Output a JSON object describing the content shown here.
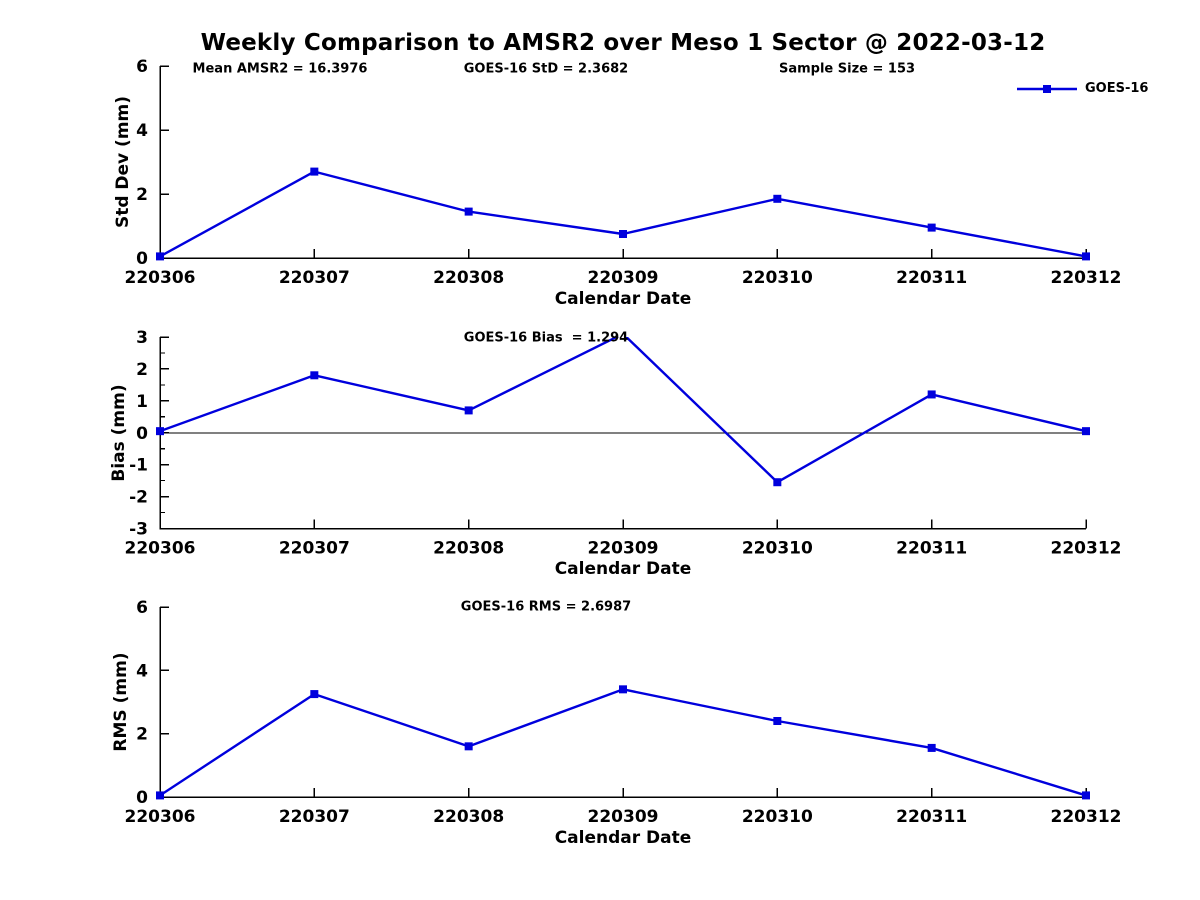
{
  "page": {
    "title": "Weekly Comparison to AMSR2 over Meso 1 Sector @ 2022-03-12"
  },
  "legend": {
    "label": "GOES-16",
    "series_color": "#0000dd"
  },
  "chart_data": [
    {
      "type": "line",
      "id": "stddev",
      "annotations": [
        {
          "text": "Mean AMSR2 = 16.3976"
        },
        {
          "text": "GOES-16 StD = 2.3682"
        },
        {
          "text": "Sample Size = 153"
        }
      ],
      "categories": [
        "220306",
        "220307",
        "220308",
        "220309",
        "220310",
        "220311",
        "220312"
      ],
      "series": [
        {
          "name": "GOES-16",
          "values": [
            0.05,
            2.7,
            1.45,
            0.75,
            1.85,
            0.95,
            0.05
          ]
        }
      ],
      "xlabel": "Calendar Date",
      "ylabel": "Std Dev (mm)",
      "ylim": [
        0,
        6
      ],
      "yticks": [
        0,
        2,
        4,
        6
      ],
      "yminorticks": [],
      "zero_line": false,
      "grid": false,
      "legend_position": "top-right"
    },
    {
      "type": "line",
      "id": "bias",
      "annotations": [
        {
          "text": "GOES-16 Bias  = 1.294"
        }
      ],
      "categories": [
        "220306",
        "220307",
        "220308",
        "220309",
        "220310",
        "220311",
        "220312"
      ],
      "series": [
        {
          "name": "GOES-16",
          "values": [
            0.05,
            1.8,
            0.7,
            3.1,
            -1.55,
            1.2,
            0.05
          ]
        }
      ],
      "xlabel": "Calendar Date",
      "ylabel": "Bias (mm)",
      "ylim": [
        -3,
        3
      ],
      "yticks": [
        -3,
        -2,
        -1,
        0,
        1,
        2,
        3
      ],
      "yminorticks": [
        -2.5,
        -1.5,
        -0.5,
        0.5,
        1.5,
        2.5
      ],
      "zero_line": true,
      "grid": false,
      "legend_position": "none"
    },
    {
      "type": "line",
      "id": "rms",
      "annotations": [
        {
          "text": "GOES-16 RMS = 2.6987"
        }
      ],
      "categories": [
        "220306",
        "220307",
        "220308",
        "220309",
        "220310",
        "220311",
        "220312"
      ],
      "series": [
        {
          "name": "GOES-16",
          "values": [
            0.05,
            3.25,
            1.6,
            3.4,
            2.4,
            1.55,
            0.05
          ]
        }
      ],
      "xlabel": "Calendar Date",
      "ylabel": "RMS (mm)",
      "ylim": [
        0,
        6
      ],
      "yticks": [
        0,
        2,
        4,
        6
      ],
      "yminorticks": [],
      "zero_line": false,
      "grid": false,
      "legend_position": "none"
    }
  ]
}
